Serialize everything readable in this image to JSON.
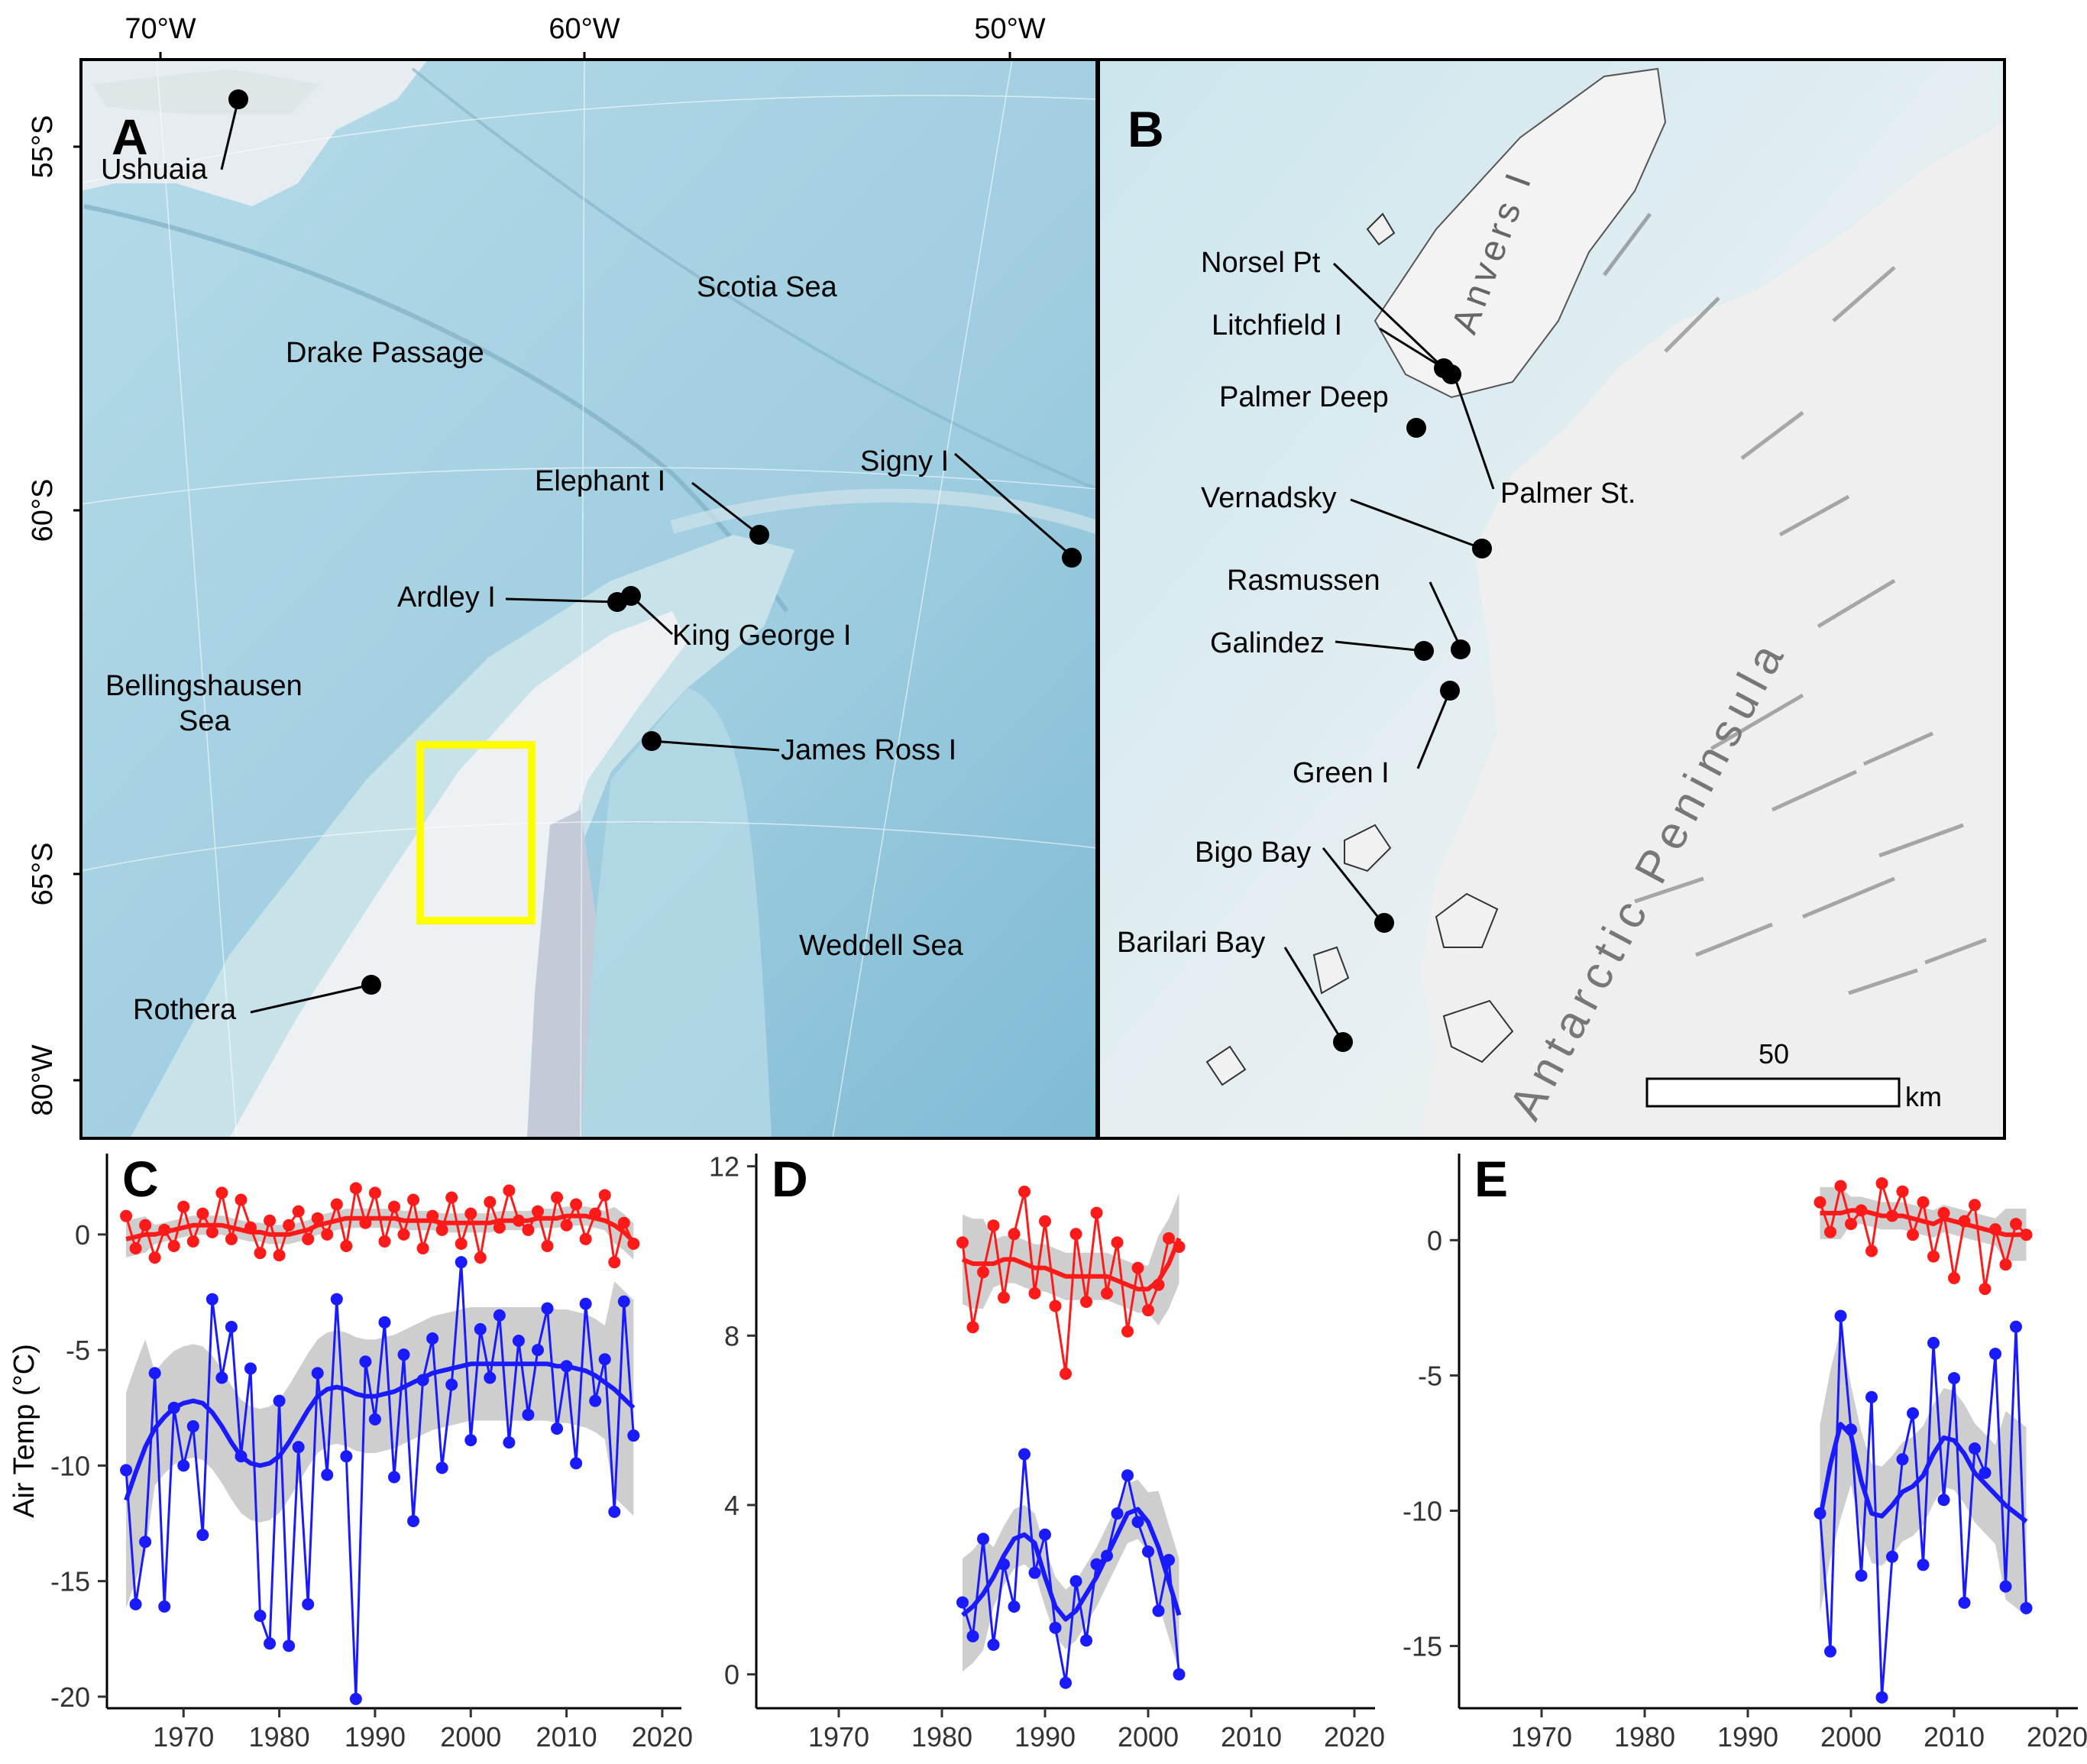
{
  "colors": {
    "ocean": "#a9d3e2",
    "ocean_deep": "#8cc4da",
    "land": "#e8eeef",
    "ice": "#f2f3f4",
    "highlight_box": "#ffff00",
    "summer_series": "#ff1a1a",
    "winter_series": "#1a1aff",
    "ci_band": "#bdbdbd"
  },
  "map_a": {
    "panel_letter": "A",
    "lon_labels": [
      "70°W",
      "60°W",
      "50°W"
    ],
    "lat_labels": [
      "55°S",
      "60°S",
      "65°S",
      "80°W"
    ],
    "places": [
      {
        "name": "Ushuaia",
        "kind": "station"
      },
      {
        "name": "Scotia Sea",
        "kind": "region"
      },
      {
        "name": "Drake Passage",
        "kind": "region"
      },
      {
        "name": "Elephant I",
        "kind": "station"
      },
      {
        "name": "Signy I",
        "kind": "station"
      },
      {
        "name": "Ardley I",
        "kind": "station"
      },
      {
        "name": "King George I",
        "kind": "station"
      },
      {
        "name": "Bellingshausen",
        "kind": "region"
      },
      {
        "name": "Sea",
        "kind": "region"
      },
      {
        "name": "James Ross I",
        "kind": "station"
      },
      {
        "name": "Weddell Sea",
        "kind": "region"
      },
      {
        "name": "Rothera",
        "kind": "station"
      }
    ]
  },
  "map_b": {
    "panel_letter": "B",
    "sites": [
      "Norsel Pt",
      "Litchfield I",
      "Palmer Deep",
      "Palmer St.",
      "Vernadsky",
      "Rasmussen",
      "Galindez",
      "Green I",
      "Bigo Bay",
      "Barilari Bay"
    ],
    "region_labels": [
      "Anvers I",
      "Antarctic Peninsula"
    ],
    "scale_value": "50",
    "scale_unit": "km"
  },
  "chart_data": [
    {
      "panel": "C",
      "type": "line",
      "ylabel": "Air Temp (°C)",
      "xlim": [
        1962,
        2022
      ],
      "ylim": [
        -20.5,
        3.5
      ],
      "x_ticks": [
        1970,
        1980,
        1990,
        2000,
        2010,
        2020
      ],
      "y_ticks": [
        0,
        -5,
        -10,
        -15,
        -20
      ],
      "series": [
        {
          "color": "summer_series",
          "x": [
            1964,
            1965,
            1966,
            1967,
            1968,
            1969,
            1970,
            1971,
            1972,
            1973,
            1974,
            1975,
            1976,
            1977,
            1978,
            1979,
            1980,
            1981,
            1982,
            1983,
            1984,
            1985,
            1986,
            1987,
            1988,
            1989,
            1990,
            1991,
            1992,
            1993,
            1994,
            1995,
            1996,
            1997,
            1998,
            1999,
            2000,
            2001,
            2002,
            2003,
            2004,
            2005,
            2006,
            2007,
            2008,
            2009,
            2010,
            2011,
            2012,
            2013,
            2014,
            2015,
            2016,
            2017
          ],
          "y": [
            0.8,
            -0.6,
            0.4,
            -1.0,
            0.2,
            -0.5,
            1.2,
            -0.3,
            0.9,
            0.1,
            1.8,
            -0.2,
            1.5,
            0.3,
            -0.8,
            0.6,
            -0.9,
            0.4,
            1.0,
            -0.2,
            0.7,
            0.0,
            1.3,
            -0.5,
            2.0,
            0.5,
            1.8,
            -0.3,
            1.2,
            0.0,
            1.5,
            -0.6,
            0.8,
            0.2,
            1.6,
            -0.4,
            0.9,
            -1.0,
            1.4,
            0.3,
            1.9,
            0.6,
            0.2,
            1.0,
            -0.5,
            1.6,
            0.4,
            1.3,
            -0.2,
            0.9,
            1.7,
            -1.2,
            0.5,
            -0.4
          ],
          "trend": [
            -0.2,
            -0.1,
            0.0,
            0.0,
            0.1,
            0.2,
            0.3,
            0.4,
            0.4,
            0.4,
            0.4,
            0.3,
            0.2,
            0.1,
            0.1,
            0.0,
            0.0,
            0.0,
            0.1,
            0.2,
            0.4,
            0.5,
            0.6,
            0.7,
            0.7,
            0.7,
            0.7,
            0.7,
            0.7,
            0.6,
            0.6,
            0.6,
            0.6,
            0.5,
            0.5,
            0.5,
            0.5,
            0.5,
            0.5,
            0.6,
            0.6,
            0.6,
            0.6,
            0.7,
            0.7,
            0.7,
            0.8,
            0.8,
            0.8,
            0.7,
            0.6,
            0.4,
            0.1,
            -0.3
          ]
        },
        {
          "color": "winter_series",
          "x": [
            1964,
            1965,
            1966,
            1967,
            1968,
            1969,
            1970,
            1971,
            1972,
            1973,
            1974,
            1975,
            1976,
            1977,
            1978,
            1979,
            1980,
            1981,
            1982,
            1983,
            1984,
            1985,
            1986,
            1987,
            1988,
            1989,
            1990,
            1991,
            1992,
            1993,
            1994,
            1995,
            1996,
            1997,
            1998,
            1999,
            2000,
            2001,
            2002,
            2003,
            2004,
            2005,
            2006,
            2007,
            2008,
            2009,
            2010,
            2011,
            2012,
            2013,
            2014,
            2015,
            2016,
            2017
          ],
          "y": [
            -10.2,
            -16.0,
            -13.3,
            -6.0,
            -16.1,
            -7.5,
            -10.0,
            -8.3,
            -13.0,
            -2.8,
            -6.2,
            -4.0,
            -9.6,
            -5.8,
            -16.5,
            -17.7,
            -7.2,
            -17.8,
            -9.2,
            -16.0,
            -6.0,
            -10.4,
            -2.8,
            -9.6,
            -20.1,
            -5.5,
            -8.0,
            -3.8,
            -10.5,
            -5.2,
            -12.4,
            -6.3,
            -4.5,
            -10.1,
            -6.5,
            -1.2,
            -8.9,
            -4.1,
            -6.2,
            -3.5,
            -9.0,
            -4.6,
            -7.8,
            -5.0,
            -3.2,
            -8.4,
            -5.7,
            -9.9,
            -3.0,
            -7.2,
            -5.4,
            -12.0,
            -2.9,
            -8.7
          ],
          "trend": [
            -11.5,
            -10.3,
            -9.2,
            -8.4,
            -7.9,
            -7.5,
            -7.3,
            -7.2,
            -7.3,
            -7.7,
            -8.3,
            -9.0,
            -9.6,
            -9.9,
            -10.0,
            -9.9,
            -9.6,
            -9.0,
            -8.3,
            -7.6,
            -7.0,
            -6.7,
            -6.6,
            -6.7,
            -6.9,
            -7.0,
            -7.0,
            -6.9,
            -6.8,
            -6.6,
            -6.4,
            -6.2,
            -6.0,
            -5.9,
            -5.8,
            -5.7,
            -5.6,
            -5.6,
            -5.6,
            -5.6,
            -5.6,
            -5.6,
            -5.6,
            -5.6,
            -5.6,
            -5.7,
            -5.7,
            -5.8,
            -5.9,
            -6.1,
            -6.4,
            -6.7,
            -7.1,
            -7.5
          ]
        }
      ]
    },
    {
      "panel": "D",
      "type": "line",
      "xlim": [
        1962,
        2022
      ],
      "ylim": [
        -0.8,
        12.3
      ],
      "x_ticks": [
        1970,
        1980,
        1990,
        2000,
        2010,
        2020
      ],
      "y_ticks": [
        0,
        4,
        8,
        12
      ],
      "series": [
        {
          "color": "summer_series",
          "x": [
            1982,
            1983,
            1984,
            1985,
            1986,
            1987,
            1988,
            1989,
            1990,
            1991,
            1992,
            1993,
            1994,
            1995,
            1996,
            1997,
            1998,
            1999,
            2000,
            2001,
            2002,
            2003
          ],
          "y": [
            10.2,
            8.2,
            9.5,
            10.6,
            8.9,
            10.4,
            11.4,
            9.0,
            10.7,
            8.7,
            7.1,
            10.4,
            8.8,
            10.9,
            9.0,
            10.2,
            8.1,
            9.6,
            8.6,
            9.2,
            10.3,
            10.1
          ],
          "trend": [
            9.8,
            9.7,
            9.7,
            9.7,
            9.8,
            9.8,
            9.7,
            9.6,
            9.6,
            9.5,
            9.4,
            9.4,
            9.4,
            9.4,
            9.4,
            9.3,
            9.2,
            9.1,
            9.1,
            9.3,
            9.7,
            10.3
          ]
        },
        {
          "color": "winter_series",
          "x": [
            1982,
            1983,
            1984,
            1985,
            1986,
            1987,
            1988,
            1989,
            1990,
            1991,
            1992,
            1993,
            1994,
            1995,
            1996,
            1997,
            1998,
            1999,
            2000,
            2001,
            2002,
            2003
          ],
          "y": [
            1.7,
            0.9,
            3.2,
            0.7,
            2.6,
            1.6,
            5.2,
            2.4,
            3.3,
            1.1,
            -0.2,
            2.2,
            0.8,
            2.6,
            2.8,
            3.8,
            4.7,
            3.6,
            2.9,
            1.5,
            2.7,
            0.0
          ],
          "trend": [
            1.4,
            1.6,
            1.9,
            2.3,
            2.8,
            3.2,
            3.3,
            3.1,
            2.3,
            1.6,
            1.3,
            1.5,
            1.9,
            2.3,
            2.8,
            3.3,
            3.8,
            3.9,
            3.6,
            3.0,
            2.2,
            1.4
          ]
        }
      ]
    },
    {
      "panel": "E",
      "type": "line",
      "xlim": [
        1962,
        2022
      ],
      "ylim": [
        -17.3,
        3.2
      ],
      "x_ticks": [
        1970,
        1980,
        1990,
        2000,
        2010,
        2020
      ],
      "y_ticks": [
        0,
        -5,
        -10,
        -15
      ],
      "series": [
        {
          "color": "summer_series",
          "x": [
            1997,
            1998,
            1999,
            2000,
            2001,
            2002,
            2003,
            2004,
            2005,
            2006,
            2007,
            2008,
            2009,
            2010,
            2011,
            2012,
            2013,
            2014,
            2015,
            2016,
            2017
          ],
          "y": [
            1.4,
            0.3,
            2.0,
            0.6,
            1.1,
            -0.4,
            2.1,
            0.9,
            1.8,
            0.2,
            1.4,
            -0.6,
            1.0,
            -1.4,
            0.7,
            1.3,
            -1.8,
            0.4,
            -0.9,
            0.6,
            0.2
          ],
          "trend": [
            1.0,
            1.0,
            1.0,
            1.1,
            1.1,
            1.0,
            0.9,
            0.9,
            0.9,
            0.8,
            0.7,
            0.6,
            0.8,
            0.7,
            0.6,
            0.5,
            0.4,
            0.3,
            0.2,
            0.2,
            0.2
          ]
        },
        {
          "color": "winter_series",
          "x": [
            1997,
            1998,
            1999,
            2000,
            2001,
            2002,
            2003,
            2004,
            2005,
            2006,
            2007,
            2008,
            2009,
            2010,
            2011,
            2012,
            2013,
            2014,
            2015,
            2016,
            2017
          ],
          "y": [
            -10.1,
            -15.2,
            -2.8,
            -7.0,
            -12.4,
            -5.8,
            -16.9,
            -11.7,
            -8.1,
            -6.4,
            -12.0,
            -3.8,
            -9.6,
            -5.1,
            -13.4,
            -7.7,
            -8.6,
            -4.2,
            -12.8,
            -3.2,
            -13.6
          ],
          "trend": [
            -10.3,
            -8.3,
            -6.8,
            -7.2,
            -8.9,
            -10.1,
            -10.2,
            -9.8,
            -9.3,
            -9.1,
            -8.7,
            -7.9,
            -7.3,
            -7.4,
            -7.9,
            -8.6,
            -9.0,
            -9.4,
            -9.8,
            -10.1,
            -10.4
          ]
        }
      ]
    }
  ]
}
